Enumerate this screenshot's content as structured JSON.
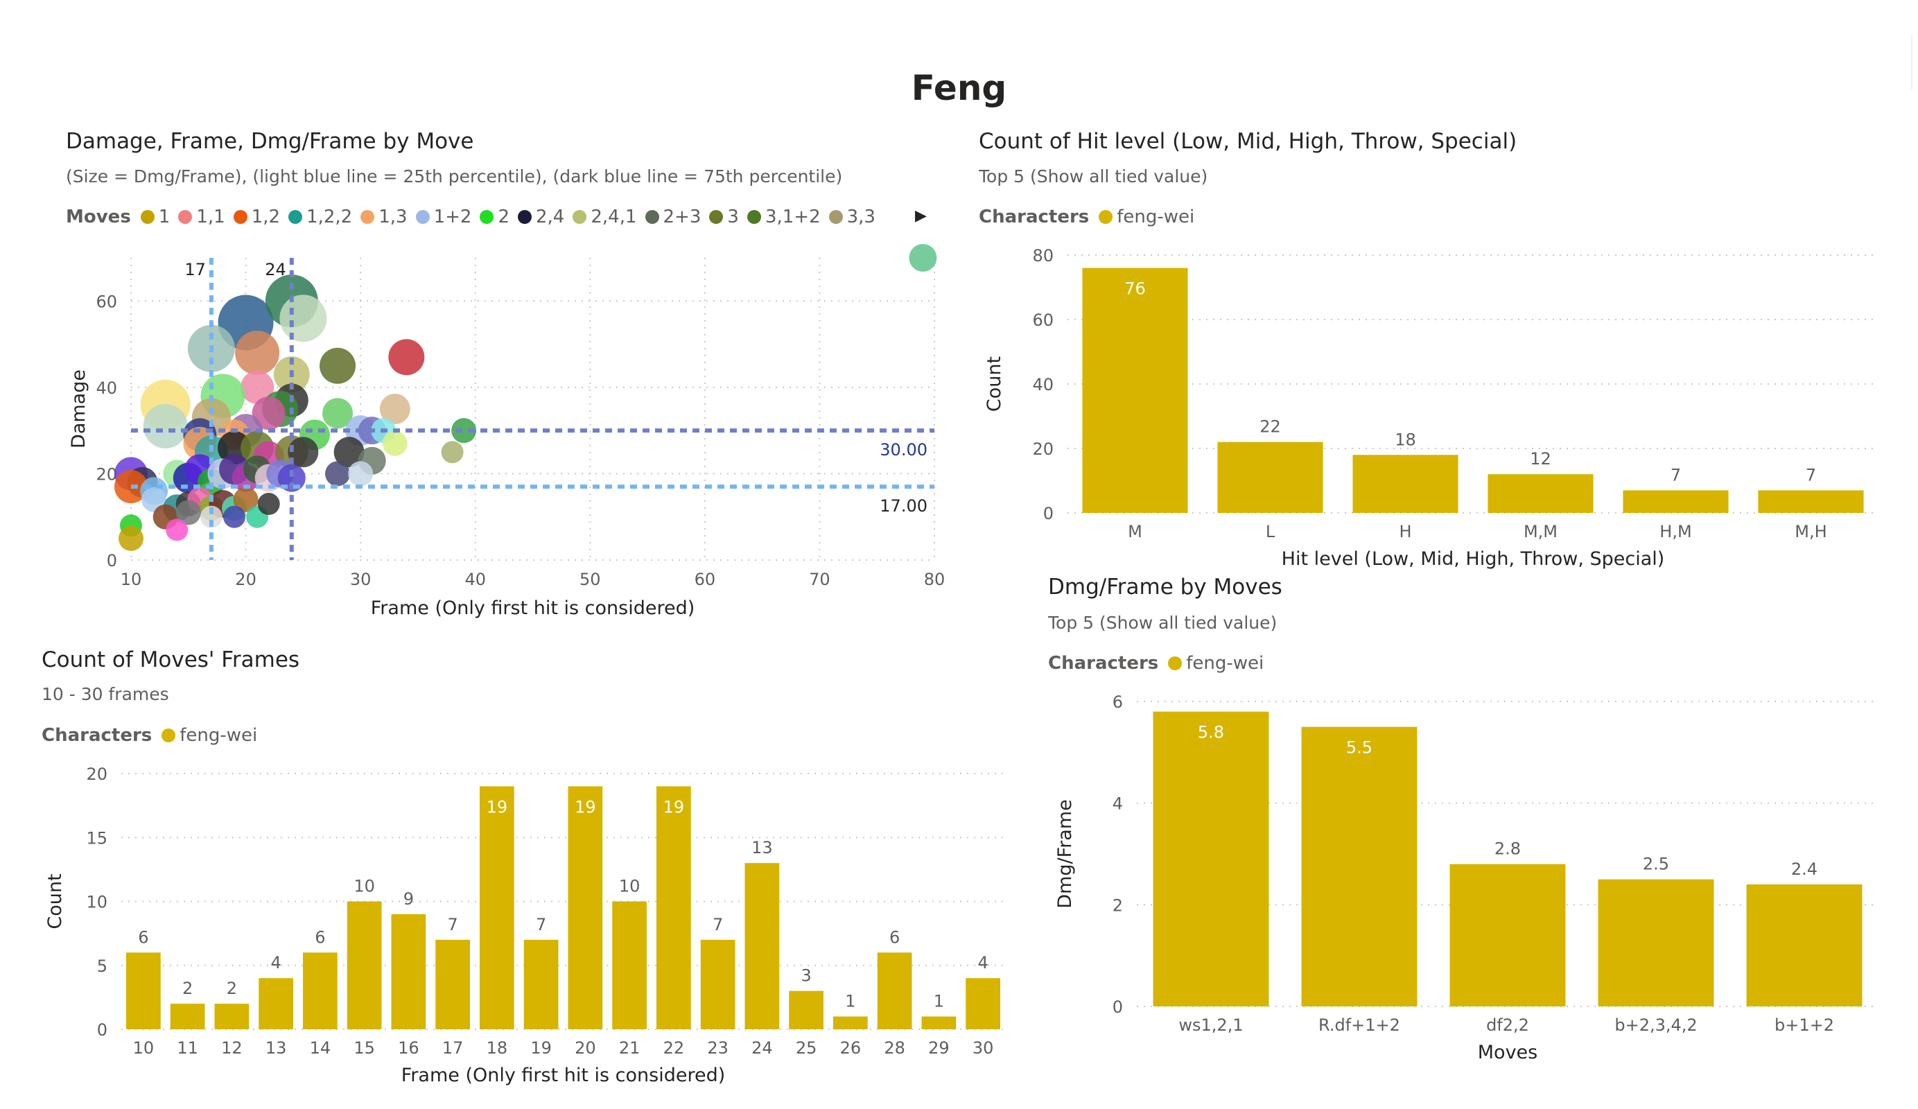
{
  "page": {
    "title": "Feng"
  },
  "scatter": {
    "title": "Damage, Frame, Dmg/Frame by Move",
    "subtitle": "(Size = Dmg/Frame), (light blue line = 25th percentile), (dark blue line = 75th percentile)",
    "legend_title": "Moves",
    "legend_items": [
      {
        "label": "1",
        "color": "#c2a100"
      },
      {
        "label": "1,1",
        "color": "#f08080"
      },
      {
        "label": "1,2",
        "color": "#e8590c"
      },
      {
        "label": "1,2,2",
        "color": "#1a9e8f"
      },
      {
        "label": "1,3",
        "color": "#f4a460"
      },
      {
        "label": "1+2",
        "color": "#9fb7e8"
      },
      {
        "label": "2",
        "color": "#22dd22"
      },
      {
        "label": "2,4",
        "color": "#1c1c3a"
      },
      {
        "label": "2,4,1",
        "color": "#b8c070"
      },
      {
        "label": "2+3",
        "color": "#5f6b5a"
      },
      {
        "label": "3",
        "color": "#6b7a2a"
      },
      {
        "label": "3,1+2",
        "color": "#4e7a28"
      },
      {
        "label": "3,3",
        "color": "#a89a70"
      }
    ],
    "legend_arrow": "▶",
    "chart_data": {
      "type": "scatter",
      "title": "Damage, Frame, Dmg/Frame by Move",
      "xlabel": "Frame (Only first hit is considered)",
      "ylabel": "Damage",
      "xlim": [
        10,
        80
      ],
      "ylim": [
        0,
        70
      ],
      "xticks": [
        10,
        20,
        30,
        40,
        50,
        60,
        70,
        80
      ],
      "yticks": [
        0,
        20,
        40,
        60
      ],
      "grid": true,
      "reference_lines": [
        {
          "axis": "x",
          "value": 17,
          "label": "17",
          "color": "#74b4f5"
        },
        {
          "axis": "x",
          "value": 24,
          "label": "24",
          "color": "#6f7fc8"
        },
        {
          "axis": "y",
          "value": 30,
          "label": "30.00",
          "color": "#6f7fc8"
        },
        {
          "axis": "y",
          "value": 17,
          "label": "17.00",
          "color": "#74b4f5"
        }
      ],
      "points": [
        {
          "x": 79,
          "y": 70,
          "r": 10,
          "c": "#5ec48a"
        },
        {
          "x": 20,
          "y": 55,
          "r": 20,
          "c": "#2b5f8f"
        },
        {
          "x": 24,
          "y": 60,
          "r": 19,
          "c": "#2e7a55"
        },
        {
          "x": 25,
          "y": 56,
          "r": 17,
          "c": "#c5dcc0"
        },
        {
          "x": 17,
          "y": 49,
          "r": 17,
          "c": "#9bbfb5"
        },
        {
          "x": 21,
          "y": 48,
          "r": 16,
          "c": "#d4855a"
        },
        {
          "x": 34,
          "y": 47,
          "r": 13,
          "c": "#c8303a"
        },
        {
          "x": 28,
          "y": 45,
          "r": 13,
          "c": "#5f6f2a"
        },
        {
          "x": 24,
          "y": 43,
          "r": 13,
          "c": "#c0c070"
        },
        {
          "x": 21,
          "y": 40,
          "r": 12,
          "c": "#f08aa8"
        },
        {
          "x": 18,
          "y": 38,
          "r": 16,
          "c": "#7ae07a"
        },
        {
          "x": 13,
          "y": 36,
          "r": 18,
          "c": "#f7e07a"
        },
        {
          "x": 24,
          "y": 37,
          "r": 12,
          "c": "#333333"
        },
        {
          "x": 23,
          "y": 35,
          "r": 13,
          "c": "#3a8a3a"
        },
        {
          "x": 22,
          "y": 34,
          "r": 12,
          "c": "#c85a9a"
        },
        {
          "x": 33,
          "y": 35,
          "r": 11,
          "c": "#d8b890"
        },
        {
          "x": 28,
          "y": 34,
          "r": 11,
          "c": "#66cc66"
        },
        {
          "x": 17,
          "y": 33,
          "r": 14,
          "c": "#c0a870"
        },
        {
          "x": 13,
          "y": 31,
          "r": 16,
          "c": "#b8d8c8"
        },
        {
          "x": 20,
          "y": 30,
          "r": 12,
          "c": "#9a6aaa"
        },
        {
          "x": 16,
          "y": 29,
          "r": 12,
          "c": "#2e3a88"
        },
        {
          "x": 19,
          "y": 29,
          "r": 11,
          "c": "#f4a460"
        },
        {
          "x": 26,
          "y": 29,
          "r": 11,
          "c": "#55cc55"
        },
        {
          "x": 30,
          "y": 30,
          "r": 11,
          "c": "#a0b8e8"
        },
        {
          "x": 31,
          "y": 30,
          "r": 10,
          "c": "#7070c0"
        },
        {
          "x": 32,
          "y": 30,
          "r": 9,
          "c": "#88e8e8"
        },
        {
          "x": 33,
          "y": 27,
          "r": 9,
          "c": "#d8f080"
        },
        {
          "x": 39,
          "y": 30,
          "r": 9,
          "c": "#3aa04a"
        },
        {
          "x": 38,
          "y": 25,
          "r": 8,
          "c": "#a8b070"
        },
        {
          "x": 16,
          "y": 27,
          "r": 12,
          "c": "#f4a460"
        },
        {
          "x": 17,
          "y": 25,
          "r": 12,
          "c": "#3aa09a"
        },
        {
          "x": 19,
          "y": 26,
          "r": 12,
          "c": "#222222"
        },
        {
          "x": 21,
          "y": 26,
          "r": 12,
          "c": "#6b7a2a"
        },
        {
          "x": 22,
          "y": 24,
          "r": 11,
          "c": "#d040a0"
        },
        {
          "x": 24,
          "y": 25,
          "r": 12,
          "c": "#7a7a30"
        },
        {
          "x": 25,
          "y": 25,
          "r": 11,
          "c": "#3a3a3a"
        },
        {
          "x": 29,
          "y": 25,
          "r": 11,
          "c": "#333333"
        },
        {
          "x": 31,
          "y": 23,
          "r": 10,
          "c": "#6b7a6a"
        },
        {
          "x": 28,
          "y": 20,
          "r": 9,
          "c": "#4a4a7a"
        },
        {
          "x": 30,
          "y": 20,
          "r": 9,
          "c": "#c8d8e8"
        },
        {
          "x": 10,
          "y": 20,
          "r": 12,
          "c": "#6a3ad8"
        },
        {
          "x": 11,
          "y": 18,
          "r": 11,
          "c": "#333355"
        },
        {
          "x": 10,
          "y": 17,
          "r": 12,
          "c": "#e8590c"
        },
        {
          "x": 12,
          "y": 16,
          "r": 10,
          "c": "#7ab8e8"
        },
        {
          "x": 14,
          "y": 20,
          "r": 10,
          "c": "#9ae89a"
        },
        {
          "x": 15,
          "y": 19,
          "r": 11,
          "c": "#2222aa"
        },
        {
          "x": 16,
          "y": 21,
          "r": 11,
          "c": "#5522dd"
        },
        {
          "x": 17,
          "y": 18,
          "r": 10,
          "c": "#22aa22"
        },
        {
          "x": 18,
          "y": 20,
          "r": 11,
          "c": "#c8c8f0"
        },
        {
          "x": 19,
          "y": 21,
          "r": 11,
          "c": "#4a2a8a"
        },
        {
          "x": 20,
          "y": 19,
          "r": 10,
          "c": "#aa3aaa"
        },
        {
          "x": 21,
          "y": 21,
          "r": 10,
          "c": "#3a5a3a"
        },
        {
          "x": 22,
          "y": 19,
          "r": 10,
          "c": "#e8c8d8"
        },
        {
          "x": 23,
          "y": 20,
          "r": 10,
          "c": "#7a7ad8"
        },
        {
          "x": 24,
          "y": 19,
          "r": 10,
          "c": "#5544cc"
        },
        {
          "x": 12,
          "y": 14,
          "r": 9,
          "c": "#aaccee"
        },
        {
          "x": 14,
          "y": 12,
          "r": 10,
          "c": "#228888"
        },
        {
          "x": 15,
          "y": 13,
          "r": 9,
          "c": "#3a3a3a"
        },
        {
          "x": 16,
          "y": 14,
          "r": 9,
          "c": "#ee66aa"
        },
        {
          "x": 17,
          "y": 12,
          "r": 9,
          "c": "#88aa22"
        },
        {
          "x": 18,
          "y": 13,
          "r": 10,
          "c": "#6a2a2a"
        },
        {
          "x": 19,
          "y": 12,
          "r": 9,
          "c": "#55ddaa"
        },
        {
          "x": 20,
          "y": 14,
          "r": 9,
          "c": "#aa6622"
        },
        {
          "x": 13,
          "y": 10,
          "r": 9,
          "c": "#884422"
        },
        {
          "x": 15,
          "y": 11,
          "r": 9,
          "c": "#777777"
        },
        {
          "x": 17,
          "y": 10,
          "r": 8,
          "c": "#dddddd"
        },
        {
          "x": 19,
          "y": 10,
          "r": 8,
          "c": "#4444aa"
        },
        {
          "x": 21,
          "y": 10,
          "r": 8,
          "c": "#33cc99"
        },
        {
          "x": 22,
          "y": 13,
          "r": 8,
          "c": "#333333"
        },
        {
          "x": 14,
          "y": 7,
          "r": 8,
          "c": "#ff55cc"
        },
        {
          "x": 10,
          "y": 8,
          "r": 8,
          "c": "#22cc22"
        },
        {
          "x": 10,
          "y": 5,
          "r": 9,
          "c": "#c2a100"
        }
      ]
    }
  },
  "hit_level": {
    "title": "Count of Hit level (Low, Mid, High, Throw, Special)",
    "subtitle": "Top 5 (Show all tied value)",
    "legend_title": "Characters",
    "legend_items": [
      {
        "label": "feng-wei",
        "color": "#d6b400"
      }
    ],
    "chart_data": {
      "type": "bar",
      "categories": [
        "M",
        "L",
        "H",
        "M,M",
        "H,M",
        "M,H"
      ],
      "series": [
        {
          "name": "feng-wei",
          "values": [
            76,
            22,
            18,
            12,
            7,
            7
          ]
        }
      ],
      "xlabel": "Hit level (Low, Mid, High, Throw, Special)",
      "ylabel": "Count",
      "ylim": [
        0,
        80
      ],
      "yticks": [
        0,
        20,
        40,
        60,
        80
      ],
      "color": "#d6b400",
      "grid": true
    }
  },
  "frames": {
    "title": "Count of Moves' Frames",
    "subtitle": "10 - 30 frames",
    "legend_title": "Characters",
    "legend_items": [
      {
        "label": "feng-wei",
        "color": "#d6b400"
      }
    ],
    "chart_data": {
      "type": "bar",
      "categories": [
        "10",
        "11",
        "12",
        "13",
        "14",
        "15",
        "16",
        "17",
        "18",
        "19",
        "20",
        "21",
        "22",
        "23",
        "24",
        "25",
        "26",
        "28",
        "29",
        "30"
      ],
      "series": [
        {
          "name": "feng-wei",
          "values": [
            6,
            2,
            2,
            4,
            6,
            10,
            9,
            7,
            19,
            7,
            19,
            10,
            19,
            7,
            13,
            3,
            1,
            6,
            1,
            4
          ]
        }
      ],
      "xlabel": "Frame (Only first hit is considered)",
      "ylabel": "Count",
      "ylim": [
        0,
        20
      ],
      "yticks": [
        0,
        5,
        10,
        15,
        20
      ],
      "color": "#d6b400",
      "grid": true
    }
  },
  "dmg_frame": {
    "title": "Dmg/Frame by Moves",
    "subtitle": "Top 5 (Show all tied value)",
    "legend_title": "Characters",
    "legend_items": [
      {
        "label": "feng-wei",
        "color": "#d6b400"
      }
    ],
    "chart_data": {
      "type": "bar",
      "categories": [
        "ws1,2,1",
        "R.df+1+2",
        "df2,2",
        "b+2,3,4,2",
        "b+1+2"
      ],
      "series": [
        {
          "name": "feng-wei",
          "values": [
            5.8,
            5.5,
            2.8,
            2.5,
            2.4
          ]
        }
      ],
      "xlabel": "Moves",
      "ylabel": "Dmg/Frame",
      "ylim": [
        0,
        6
      ],
      "yticks": [
        0,
        2,
        4,
        6
      ],
      "color": "#d6b400",
      "grid": true
    }
  }
}
